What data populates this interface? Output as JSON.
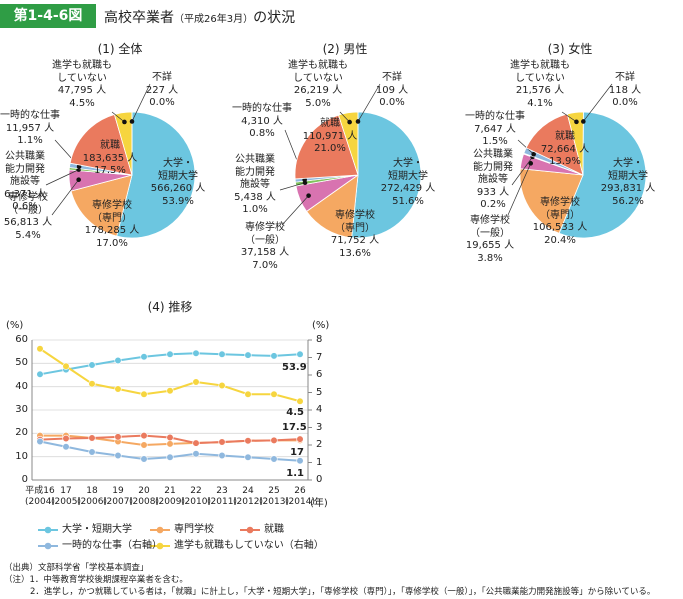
{
  "header": {
    "figure_no": "第1-4-6図",
    "title": "高校卒業者",
    "title_note": "（平成26年3月）",
    "title_suffix": "の状況"
  },
  "chart_data": [
    {
      "type": "pie",
      "subtitle": "(1) 全体",
      "categories": [
        "大学・\n短期大学",
        "専修学校\n（専門）",
        "専修学校\n（一般）",
        "公共職業\n能力開発\n施設等",
        "一時的な仕事",
        "就職",
        "進学も就職も\nしていない",
        "不詳"
      ],
      "counts": [
        566260,
        178285,
        56813,
        6371,
        11957,
        183635,
        47795,
        227
      ],
      "count_labels": [
        "566,260 人",
        "178,285 人",
        "56,813 人",
        "6,371 人",
        "11,957 人",
        "183,635 人",
        "47,795 人",
        "227 人"
      ],
      "values": [
        53.9,
        17.0,
        5.4,
        0.6,
        1.1,
        17.5,
        4.5,
        0.0
      ],
      "value_labels": [
        "53.9%",
        "17.0%",
        "5.4%",
        "0.6%",
        "1.1%",
        "17.5%",
        "4.5%",
        "0.0%"
      ],
      "colors": [
        "#6cc6e0",
        "#f5a862",
        "#d873b0",
        "#7fc25c",
        "#8fb8de",
        "#ea7a5e",
        "#f6d53f",
        "#b5b5b5"
      ]
    },
    {
      "type": "pie",
      "subtitle": "(2) 男性",
      "categories": [
        "大学・\n短期大学",
        "専修学校\n（専門）",
        "専修学校\n（一般）",
        "公共職業\n能力開発\n施設等",
        "一時的な仕事",
        "就職",
        "進学も就職も\nしていない",
        "不詳"
      ],
      "counts": [
        272429,
        71752,
        37158,
        5438,
        4310,
        110971,
        26219,
        109
      ],
      "count_labels": [
        "272,429 人",
        "71,752 人",
        "37,158 人",
        "5,438 人",
        "4,310 人",
        "110,971 人",
        "26,219 人",
        "109 人"
      ],
      "values": [
        51.6,
        13.6,
        7.0,
        1.0,
        0.8,
        21.0,
        5.0,
        0.0
      ],
      "value_labels": [
        "51.6%",
        "13.6%",
        "7.0%",
        "1.0%",
        "0.8%",
        "21.0%",
        "5.0%",
        "0.0%"
      ],
      "colors": [
        "#6cc6e0",
        "#f5a862",
        "#d873b0",
        "#7fc25c",
        "#8fb8de",
        "#ea7a5e",
        "#f6d53f",
        "#b5b5b5"
      ]
    },
    {
      "type": "pie",
      "subtitle": "(3) 女性",
      "categories": [
        "大学・\n短期大学",
        "専修学校\n（専門）",
        "専修学校\n（一般）",
        "公共職業\n能力開発\n施設等",
        "一時的な仕事",
        "就職",
        "進学も就職も\nしていない",
        "不詳"
      ],
      "counts": [
        293831,
        106533,
        19655,
        933,
        7647,
        72664,
        21576,
        118
      ],
      "count_labels": [
        "293,831 人",
        "106,533 人",
        "19,655 人",
        "933 人",
        "7,647 人",
        "72,664 人",
        "21,576 人",
        "118 人"
      ],
      "values": [
        56.2,
        20.4,
        3.8,
        0.2,
        1.5,
        13.9,
        4.1,
        0.0
      ],
      "value_labels": [
        "56.2%",
        "20.4%",
        "3.8%",
        "0.2%",
        "1.5%",
        "13.9%",
        "4.1%",
        "0.0%"
      ],
      "colors": [
        "#6cc6e0",
        "#f5a862",
        "#d873b0",
        "#7fc25c",
        "#8fb8de",
        "#ea7a5e",
        "#f6d53f",
        "#b5b5b5"
      ]
    },
    {
      "type": "line",
      "title": "(4) 推移",
      "categories": [
        "平成16\n(2004)",
        "17\n(2005)",
        "18\n(2006)",
        "19\n(2007)",
        "20\n(2008)",
        "21\n(2009)",
        "22\n(2010)",
        "23\n(2011)",
        "24\n(2012)",
        "25\n(2013)",
        "26\n(2014)"
      ],
      "x_unit": "(年)",
      "ylabel": "(%)",
      "y2label": "(%)",
      "ylim": [
        0,
        60
      ],
      "yticks": [
        0,
        10,
        20,
        30,
        40,
        50,
        60
      ],
      "y2lim": [
        0,
        8
      ],
      "y2ticks": [
        0,
        1,
        2,
        3,
        4,
        5,
        6,
        7,
        8
      ],
      "grid": true,
      "series": [
        {
          "name": "大学・短期大学",
          "color": "#6cc6e0",
          "values": [
            45.3,
            47.3,
            49.3,
            51.2,
            52.8,
            53.9,
            54.3,
            53.9,
            53.5,
            53.2,
            53.9
          ]
        },
        {
          "name": "専門学校",
          "color": "#f5a862",
          "values": [
            19.0,
            19.0,
            18.0,
            16.5,
            15.0,
            15.5,
            15.9,
            16.2,
            16.8,
            17.0,
            17.0
          ]
        },
        {
          "name": "就職",
          "color": "#ea7a5e",
          "values": [
            17.3,
            17.8,
            18.0,
            18.5,
            19.0,
            18.2,
            15.8,
            16.3,
            16.8,
            17.0,
            17.5
          ]
        },
        {
          "name": "一時的な仕事（右軸）",
          "color": "#8fb8de",
          "axis": "y2",
          "values": [
            2.2,
            1.9,
            1.6,
            1.4,
            1.2,
            1.3,
            1.5,
            1.4,
            1.3,
            1.2,
            1.1
          ]
        },
        {
          "name": "進学も就職もしていない（右軸）",
          "color": "#f6d53f",
          "axis": "y2",
          "values": [
            7.5,
            6.5,
            5.5,
            5.2,
            4.9,
            5.1,
            5.6,
            5.4,
            4.9,
            4.9,
            4.5
          ]
        }
      ]
    }
  ],
  "notes": [
    "（出典）文部科学省「学校基本調査」",
    "（注）1．中等教育学校後期課程卒業者を含む。",
    "2．進学し，かつ就職している者は，「就職」に計上し，「大学・短期大学」，「専修学校（専門）」，「専修学校（一般）」，「公共職業能力開発施設等」から除いている。"
  ]
}
